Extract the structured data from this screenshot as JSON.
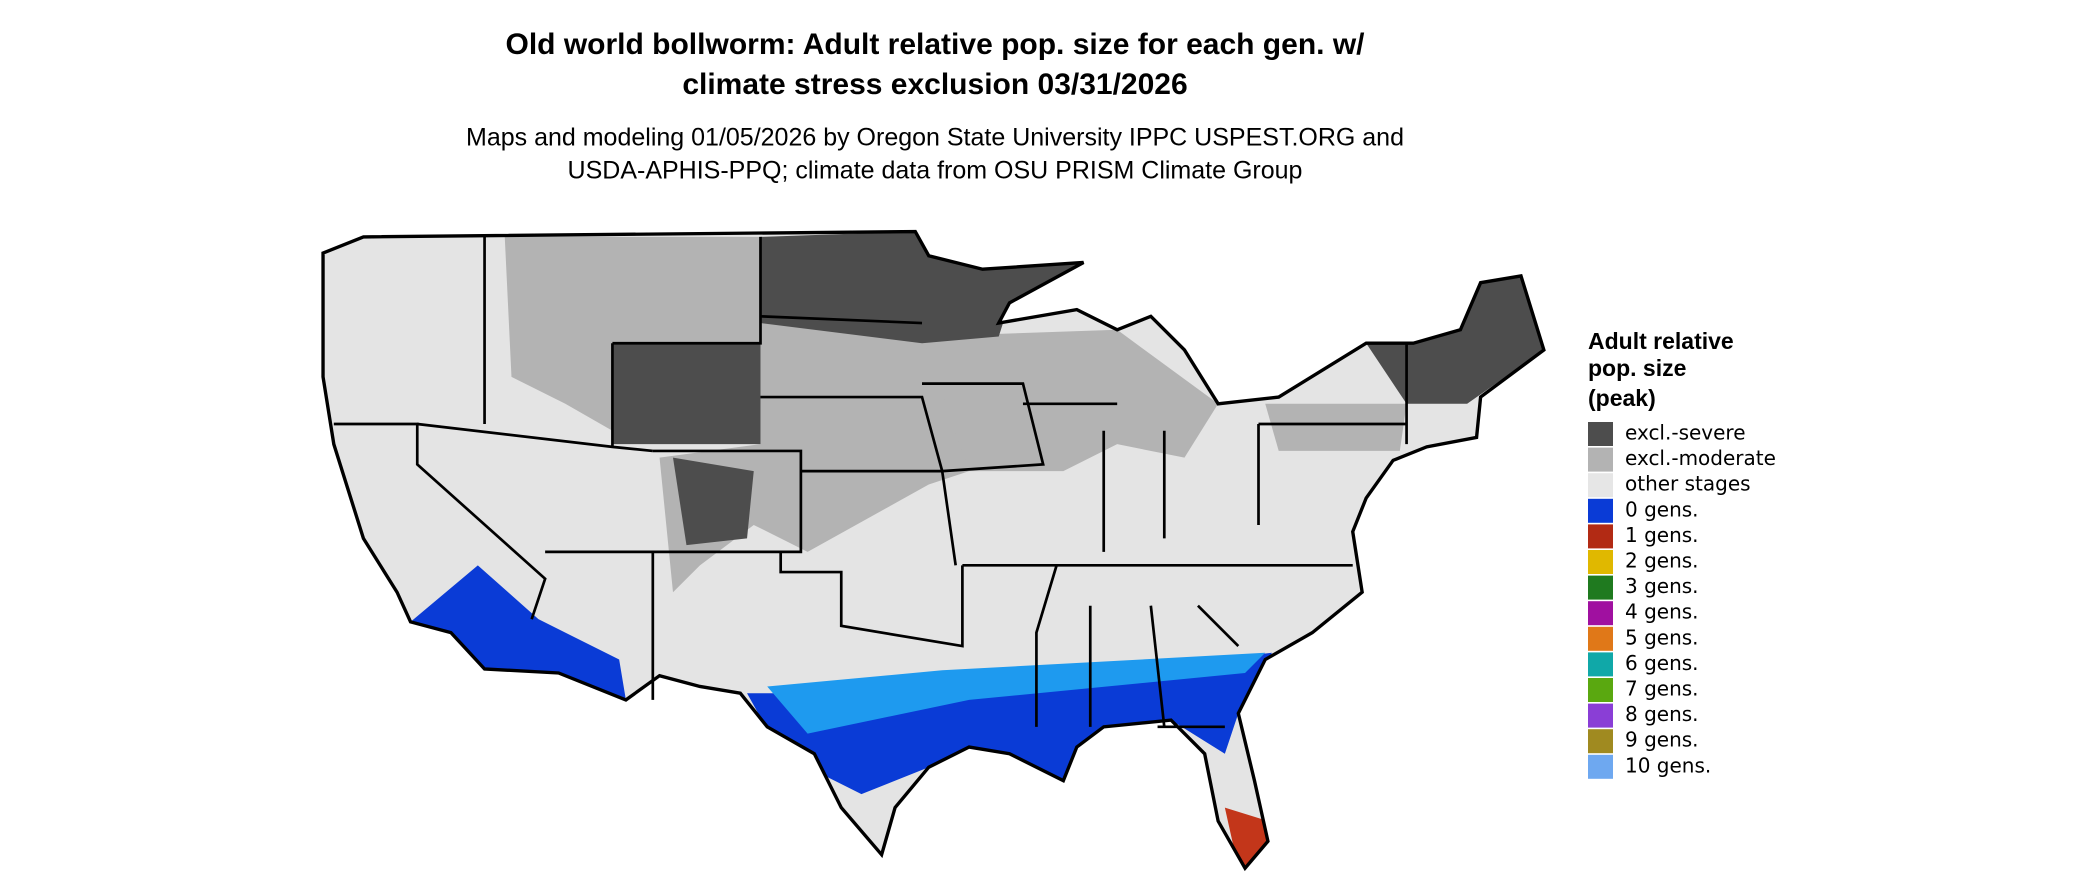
{
  "title": [
    "Old world bollworm: Adult relative pop. size for each gen. w/",
    "climate stress exclusion 03/31/2026"
  ],
  "subtitle": [
    "Maps and modeling 01/05/2026 by Oregon State University IPPC USPEST.ORG and",
    "USDA-APHIS-PPQ; climate data from OSU PRISM Climate Group"
  ],
  "legend": {
    "title": [
      "Adult relative",
      "pop. size",
      "(peak)"
    ],
    "items": [
      {
        "label": "excl.-severe",
        "color": "#4d4d4d"
      },
      {
        "label": "excl.-moderate",
        "color": "#b3b3b3"
      },
      {
        "label": "other stages",
        "color": "#e6e6e6"
      },
      {
        "label": "0 gens.",
        "color": "#0a3bd6"
      },
      {
        "label": "1 gens.",
        "color": "#b22a14"
      },
      {
        "label": "2 gens.",
        "color": "#e0b800"
      },
      {
        "label": "3 gens.",
        "color": "#1f7a1f"
      },
      {
        "label": "4 gens.",
        "color": "#a010a0"
      },
      {
        "label": "5 gens.",
        "color": "#e07818"
      },
      {
        "label": "6 gens.",
        "color": "#10a8a8"
      },
      {
        "label": "7 gens.",
        "color": "#5aa810"
      },
      {
        "label": "8 gens.",
        "color": "#8a3ed6"
      },
      {
        "label": "9 gens.",
        "color": "#a08a20"
      },
      {
        "label": "10 gens.",
        "color": "#6ea8f0"
      }
    ]
  }
}
